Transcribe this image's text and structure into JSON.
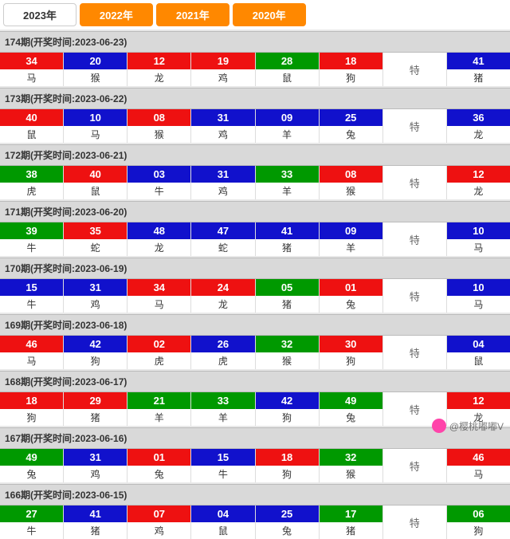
{
  "tabs": [
    {
      "label": "2023年",
      "active": true
    },
    {
      "label": "2022年",
      "active": false
    },
    {
      "label": "2021年",
      "active": false
    },
    {
      "label": "2020年",
      "active": false
    }
  ],
  "te_label": "特",
  "colors": {
    "red": "#e11",
    "blue": "#11c",
    "green": "#090",
    "tab_active_bg": "#fff",
    "tab_inactive_bg": "#f80"
  },
  "watermark": "@樱桃嘟嘟V",
  "sections": [
    {
      "period": "174",
      "date": "2023-06-23",
      "balls": [
        {
          "n": "34",
          "c": "red",
          "z": "马"
        },
        {
          "n": "20",
          "c": "blue",
          "z": "猴"
        },
        {
          "n": "12",
          "c": "red",
          "z": "龙"
        },
        {
          "n": "19",
          "c": "red",
          "z": "鸡"
        },
        {
          "n": "28",
          "c": "green",
          "z": "鼠"
        },
        {
          "n": "18",
          "c": "red",
          "z": "狗"
        }
      ],
      "special": {
        "n": "41",
        "c": "blue",
        "z": "猪"
      }
    },
    {
      "period": "173",
      "date": "2023-06-22",
      "balls": [
        {
          "n": "40",
          "c": "red",
          "z": "鼠"
        },
        {
          "n": "10",
          "c": "blue",
          "z": "马"
        },
        {
          "n": "08",
          "c": "red",
          "z": "猴"
        },
        {
          "n": "31",
          "c": "blue",
          "z": "鸡"
        },
        {
          "n": "09",
          "c": "blue",
          "z": "羊"
        },
        {
          "n": "25",
          "c": "blue",
          "z": "兔"
        }
      ],
      "special": {
        "n": "36",
        "c": "blue",
        "z": "龙"
      }
    },
    {
      "period": "172",
      "date": "2023-06-21",
      "balls": [
        {
          "n": "38",
          "c": "green",
          "z": "虎"
        },
        {
          "n": "40",
          "c": "red",
          "z": "鼠"
        },
        {
          "n": "03",
          "c": "blue",
          "z": "牛"
        },
        {
          "n": "31",
          "c": "blue",
          "z": "鸡"
        },
        {
          "n": "33",
          "c": "green",
          "z": "羊"
        },
        {
          "n": "08",
          "c": "red",
          "z": "猴"
        }
      ],
      "special": {
        "n": "12",
        "c": "red",
        "z": "龙"
      }
    },
    {
      "period": "171",
      "date": "2023-06-20",
      "balls": [
        {
          "n": "39",
          "c": "green",
          "z": "牛"
        },
        {
          "n": "35",
          "c": "red",
          "z": "蛇"
        },
        {
          "n": "48",
          "c": "blue",
          "z": "龙"
        },
        {
          "n": "47",
          "c": "blue",
          "z": "蛇"
        },
        {
          "n": "41",
          "c": "blue",
          "z": "猪"
        },
        {
          "n": "09",
          "c": "blue",
          "z": "羊"
        }
      ],
      "special": {
        "n": "10",
        "c": "blue",
        "z": "马"
      }
    },
    {
      "period": "170",
      "date": "2023-06-19",
      "balls": [
        {
          "n": "15",
          "c": "blue",
          "z": "牛"
        },
        {
          "n": "31",
          "c": "blue",
          "z": "鸡"
        },
        {
          "n": "34",
          "c": "red",
          "z": "马"
        },
        {
          "n": "24",
          "c": "red",
          "z": "龙"
        },
        {
          "n": "05",
          "c": "green",
          "z": "猪"
        },
        {
          "n": "01",
          "c": "red",
          "z": "兔"
        }
      ],
      "special": {
        "n": "10",
        "c": "blue",
        "z": "马"
      }
    },
    {
      "period": "169",
      "date": "2023-06-18",
      "balls": [
        {
          "n": "46",
          "c": "red",
          "z": "马"
        },
        {
          "n": "42",
          "c": "blue",
          "z": "狗"
        },
        {
          "n": "02",
          "c": "red",
          "z": "虎"
        },
        {
          "n": "26",
          "c": "blue",
          "z": "虎"
        },
        {
          "n": "32",
          "c": "green",
          "z": "猴"
        },
        {
          "n": "30",
          "c": "red",
          "z": "狗"
        }
      ],
      "special": {
        "n": "04",
        "c": "blue",
        "z": "鼠"
      }
    },
    {
      "period": "168",
      "date": "2023-06-17",
      "balls": [
        {
          "n": "18",
          "c": "red",
          "z": "狗"
        },
        {
          "n": "29",
          "c": "red",
          "z": "猪"
        },
        {
          "n": "21",
          "c": "green",
          "z": "羊"
        },
        {
          "n": "33",
          "c": "green",
          "z": "羊"
        },
        {
          "n": "42",
          "c": "blue",
          "z": "狗"
        },
        {
          "n": "49",
          "c": "green",
          "z": "兔"
        }
      ],
      "special": {
        "n": "12",
        "c": "red",
        "z": "龙"
      }
    },
    {
      "period": "167",
      "date": "2023-06-16",
      "balls": [
        {
          "n": "49",
          "c": "green",
          "z": "兔"
        },
        {
          "n": "31",
          "c": "blue",
          "z": "鸡"
        },
        {
          "n": "01",
          "c": "red",
          "z": "兔"
        },
        {
          "n": "15",
          "c": "blue",
          "z": "牛"
        },
        {
          "n": "18",
          "c": "red",
          "z": "狗"
        },
        {
          "n": "32",
          "c": "green",
          "z": "猴"
        }
      ],
      "special": {
        "n": "46",
        "c": "red",
        "z": "马"
      }
    },
    {
      "period": "166",
      "date": "2023-06-15",
      "balls": [
        {
          "n": "27",
          "c": "green",
          "z": "牛"
        },
        {
          "n": "41",
          "c": "blue",
          "z": "猪"
        },
        {
          "n": "07",
          "c": "red",
          "z": "鸡"
        },
        {
          "n": "04",
          "c": "blue",
          "z": "鼠"
        },
        {
          "n": "25",
          "c": "blue",
          "z": "兔"
        },
        {
          "n": "17",
          "c": "green",
          "z": "猪"
        }
      ],
      "special": {
        "n": "06",
        "c": "green",
        "z": "狗"
      }
    }
  ]
}
